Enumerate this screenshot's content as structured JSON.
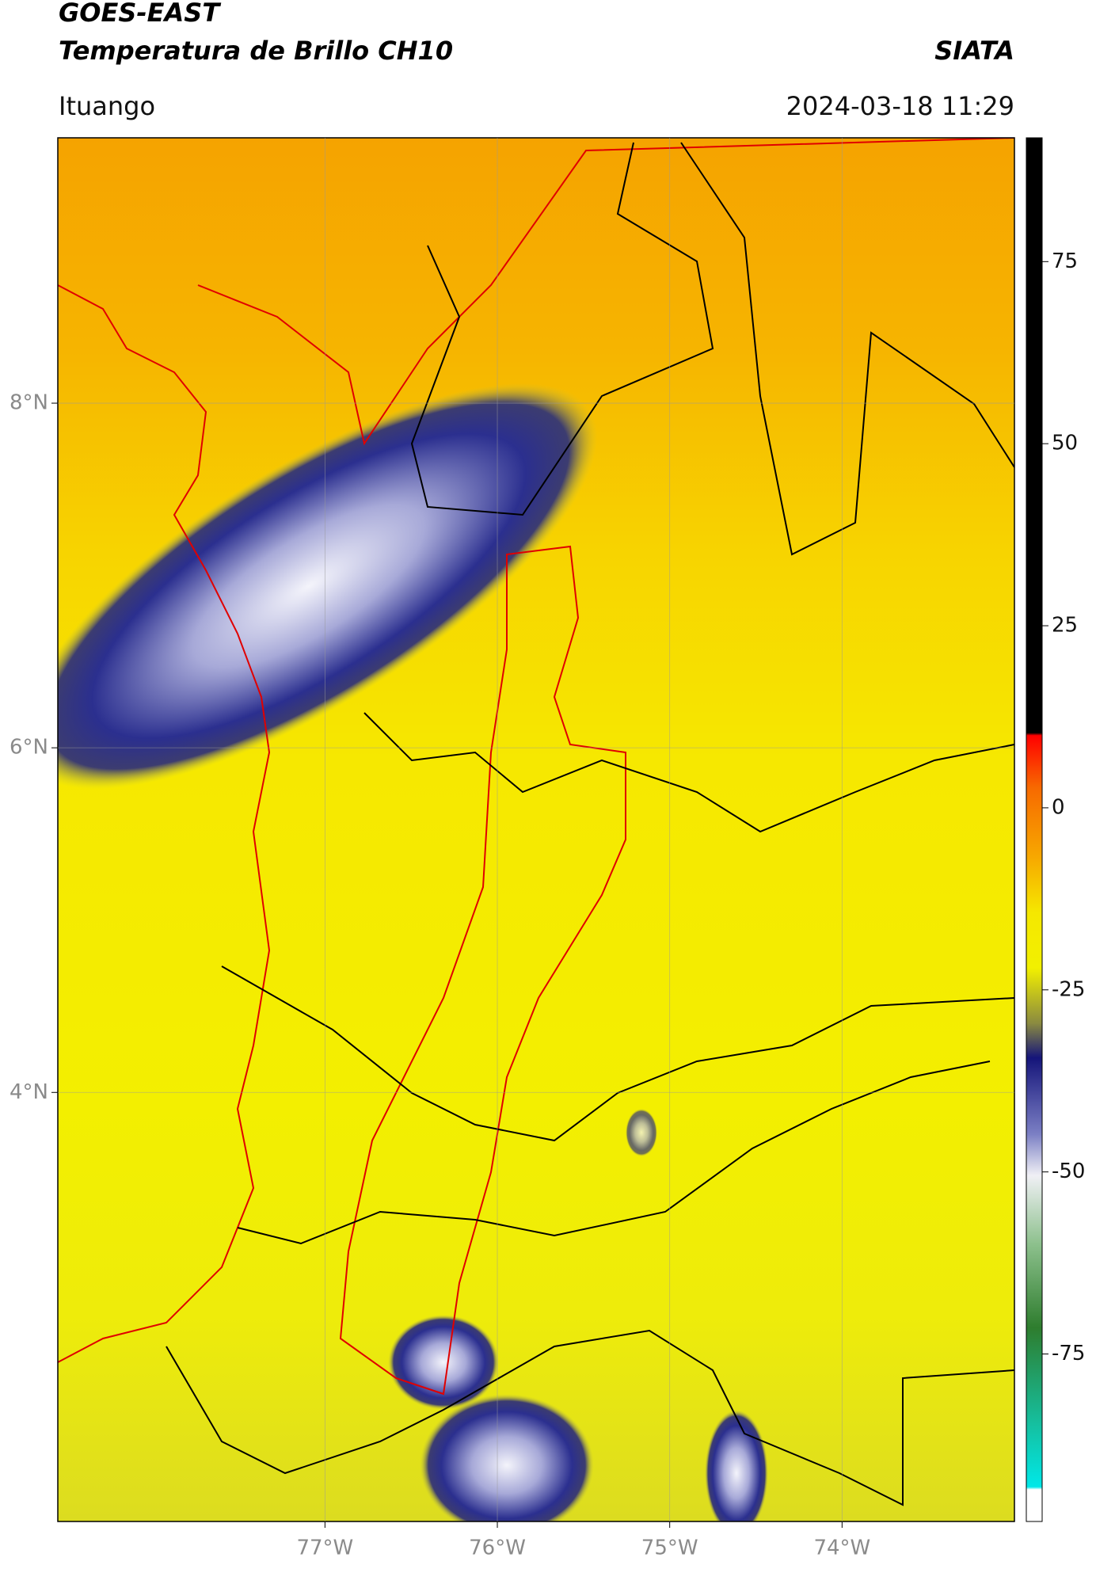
{
  "header": {
    "satellite": "GOES-EAST",
    "title": "Temperatura de Brillo CH10",
    "agency": "SIATA",
    "location": "Ituango",
    "datetime": "2024-03-18 11:29"
  },
  "chart_data": {
    "type": "map",
    "xlim": [
      -78.55,
      -73.0
    ],
    "ylim": [
      1.51,
      9.54
    ],
    "xticks": [
      {
        "value": -77,
        "label": "77°W"
      },
      {
        "value": -76,
        "label": "76°W"
      },
      {
        "value": -75,
        "label": "75°W"
      },
      {
        "value": -74,
        "label": "74°W"
      }
    ],
    "yticks": [
      {
        "value": 8,
        "label": "8°N"
      },
      {
        "value": 6,
        "label": "6°N"
      },
      {
        "value": 4,
        "label": "4°N"
      }
    ],
    "grid": true,
    "colorbar": {
      "lim": [
        -98,
        92
      ],
      "ticks": [
        75,
        50,
        25,
        0,
        -25,
        -50,
        -75
      ]
    }
  }
}
